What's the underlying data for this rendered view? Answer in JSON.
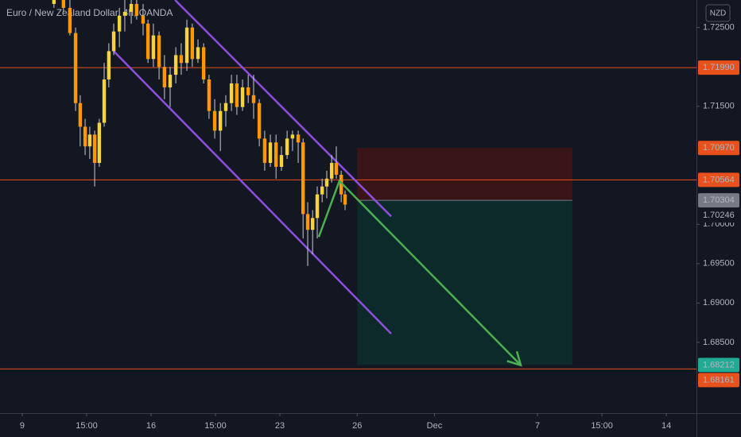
{
  "chart_data": {
    "type": "candlestick",
    "title": "Euro / New Zealand Dollar, 4h, OANDA",
    "currency_button": "NZD",
    "background": "#131722",
    "up_color": "#f7d33a",
    "down_color": "#ff9800",
    "wick_color": "#c9ccd4",
    "x": [
      1.23,
      1.6,
      1.85,
      2.07,
      2.25,
      2.44,
      2.62,
      2.81,
      2.99,
      3.18,
      3.36,
      3.55,
      3.77,
      3.98,
      4.23,
      4.44,
      4.69,
      4.88,
      5.09,
      5.31,
      5.52,
      5.74,
      5.96,
      6.17,
      6.39,
      6.6,
      6.82,
      7.04,
      7.25,
      7.47,
      7.69,
      7.9,
      8.12,
      8.33,
      8.55,
      8.77,
      8.98,
      9.2,
      9.41,
      9.63,
      9.85,
      10.06,
      10.28,
      10.49,
      10.71,
      10.9,
      11.08,
      11.27,
      11.45,
      11.64,
      11.82,
      12.01,
      12.19,
      12.38,
      12.53
    ],
    "open": [
      1.728,
      1.7285,
      1.7275,
      1.7243,
      1.7154,
      1.7124,
      1.7099,
      1.7114,
      1.7078,
      1.7129,
      1.7184,
      1.722,
      1.7245,
      1.7265,
      1.727,
      1.728,
      1.7265,
      1.7255,
      1.721,
      1.724,
      1.72,
      1.7174,
      1.719,
      1.7215,
      1.7205,
      1.725,
      1.721,
      1.7225,
      1.7184,
      1.7144,
      1.7119,
      1.7144,
      1.7154,
      1.7179,
      1.7149,
      1.7174,
      1.7164,
      1.7154,
      1.7109,
      1.7078,
      1.7104,
      1.7073,
      1.7088,
      1.7109,
      1.7114,
      1.7104,
      1.7013,
      1.6993,
      1.7008,
      1.7038,
      1.7048,
      1.7058,
      1.7078,
      1.7063,
      1.7038
    ],
    "high": [
      1.7285,
      1.7285,
      1.7285,
      1.725,
      1.7164,
      1.7134,
      1.7124,
      1.7119,
      1.7134,
      1.7205,
      1.723,
      1.7255,
      1.7275,
      1.7285,
      1.7285,
      1.7285,
      1.728,
      1.726,
      1.7255,
      1.7245,
      1.7215,
      1.72,
      1.7225,
      1.723,
      1.726,
      1.7255,
      1.7235,
      1.723,
      1.719,
      1.7159,
      1.7154,
      1.7164,
      1.719,
      1.719,
      1.7184,
      1.719,
      1.719,
      1.7159,
      1.7119,
      1.7114,
      1.7114,
      1.7099,
      1.7119,
      1.7119,
      1.7119,
      1.7109,
      1.7028,
      1.7018,
      1.7048,
      1.7058,
      1.7068,
      1.7088,
      1.7099,
      1.7068,
      1.7043
    ],
    "low": [
      1.7275,
      1.727,
      1.724,
      1.7144,
      1.7099,
      1.7088,
      1.7083,
      1.7048,
      1.7073,
      1.7124,
      1.7174,
      1.7215,
      1.7225,
      1.7245,
      1.7255,
      1.726,
      1.724,
      1.7205,
      1.72,
      1.7184,
      1.7159,
      1.7149,
      1.7179,
      1.719,
      1.7195,
      1.72,
      1.7205,
      1.7179,
      1.7134,
      1.7109,
      1.7093,
      1.7124,
      1.7144,
      1.7139,
      1.7144,
      1.7154,
      1.7134,
      1.7099,
      1.7068,
      1.7073,
      1.7058,
      1.7068,
      1.7083,
      1.7093,
      1.7078,
      1.6982,
      1.6947,
      1.6962,
      1.6982,
      1.7028,
      1.7033,
      1.7053,
      1.7058,
      1.7028,
      1.7018
    ],
    "close": [
      1.7285,
      1.7275,
      1.7243,
      1.7154,
      1.7124,
      1.7099,
      1.7114,
      1.7078,
      1.7129,
      1.7184,
      1.722,
      1.7245,
      1.7265,
      1.727,
      1.728,
      1.7265,
      1.7255,
      1.721,
      1.724,
      1.72,
      1.7174,
      1.719,
      1.7215,
      1.7205,
      1.725,
      1.721,
      1.7225,
      1.7184,
      1.7144,
      1.7119,
      1.7144,
      1.7154,
      1.7179,
      1.7149,
      1.7174,
      1.7164,
      1.7154,
      1.7109,
      1.7078,
      1.7104,
      1.7073,
      1.7088,
      1.7109,
      1.7114,
      1.7104,
      1.7013,
      1.6993,
      1.7008,
      1.7038,
      1.7048,
      1.7058,
      1.7078,
      1.7063,
      1.7038,
      1.7025
    ],
    "xlim": [
      -0.864,
      26.17
    ],
    "ylim": [
      1.676,
      1.7285
    ],
    "xticks": [
      {
        "value": 0,
        "label": "9"
      },
      {
        "value": 2.5,
        "label": "15:00"
      },
      {
        "value": 5,
        "label": "16"
      },
      {
        "value": 7.5,
        "label": "15:00"
      },
      {
        "value": 10,
        "label": "23"
      },
      {
        "value": 13,
        "label": "26"
      },
      {
        "value": 16,
        "label": "Dec"
      },
      {
        "value": 20,
        "label": "7"
      },
      {
        "value": 22.5,
        "label": "15:00"
      },
      {
        "value": 25,
        "label": "14"
      }
    ],
    "yticks": [
      {
        "value": 1.725,
        "label": "1.72500"
      },
      {
        "value": 1.715,
        "label": "1.71500"
      },
      {
        "value": 1.7,
        "label": "1.70000"
      },
      {
        "value": 1.695,
        "label": "1.69500"
      },
      {
        "value": 1.69,
        "label": "1.69000"
      },
      {
        "value": 1.685,
        "label": "1.68500"
      }
    ],
    "level_color": "#e8501c",
    "levels": [
      {
        "value": 1.7199,
        "label": "1.71990"
      },
      {
        "value": 1.70564,
        "label": "1.70564"
      },
      {
        "value": 1.68161,
        "label": "1.68161"
      }
    ],
    "position": {
      "x": [
        13.0,
        21.35
      ],
      "stop": {
        "value": 1.7097,
        "label": "1.70970"
      },
      "entry": {
        "value": 1.70304,
        "label": "1.70304"
      },
      "target": {
        "value": 1.68212,
        "label": "1.68212"
      },
      "stop_zone_color": "#3a1517",
      "target_zone_color": "#0c2a29",
      "stop_label_color": "#e8501c",
      "entry_label_color": "#787b86",
      "target_label_color": "#22ab94"
    },
    "last_price": {
      "value": 1.70246,
      "label": "1.70246",
      "color": "#ff9800"
    },
    "channel_color": "#8e4fe0",
    "channel": [
      {
        "x": [
          5.93,
          14.32
        ],
        "y": [
          1.7285,
          1.701
        ]
      },
      {
        "x": [
          3.55,
          14.32
        ],
        "y": [
          1.722,
          1.6861
        ]
      }
    ],
    "arrow_color": "#4caf50",
    "arrow": {
      "x": [
        11.51,
        12.31,
        19.35
      ],
      "y": [
        1.6984,
        1.7055,
        1.6821
      ]
    }
  }
}
